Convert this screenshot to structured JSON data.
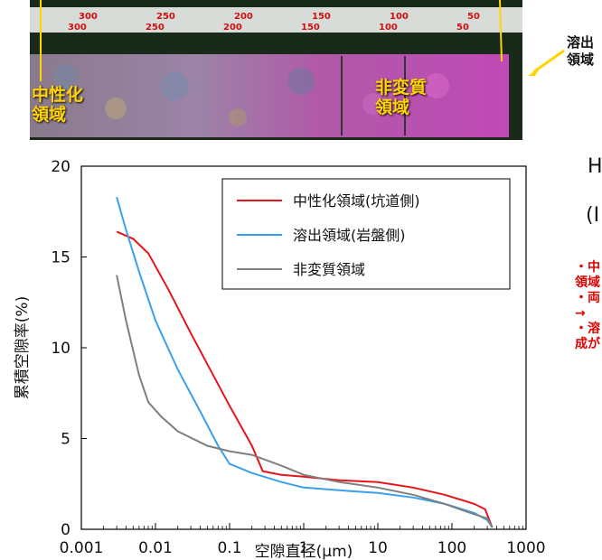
{
  "photo": {
    "ruler_ticks": [
      "300",
      "250",
      "200",
      "150",
      "100",
      "50",
      "300",
      "250",
      "200",
      "150",
      "100",
      "50"
    ],
    "label_neutralized": "中性化\n領域",
    "label_unaltered": "非変質\n領域",
    "label_leached": "溶出\n領域"
  },
  "side_panel": {
    "heading_1": "H",
    "heading_2": "(I",
    "notes": [
      "・中",
      "領域",
      "・両",
      "→",
      "・溶",
      "成が"
    ]
  },
  "colors": {
    "red": "#e8141a",
    "blue": "#3aa0ee",
    "gray": "#7f7f7f",
    "note_red": "#e00000",
    "label_yellow": "#ffd400"
  },
  "chart_data": {
    "type": "line",
    "xscale": "log",
    "xlim": [
      0.001,
      1000
    ],
    "ylim": [
      0,
      20
    ],
    "xlabel": "空隙直径(μm)",
    "ylabel": "累積空隙率(%)",
    "xticks": [
      "0.001",
      "0.01",
      "0.1",
      "1",
      "10",
      "100",
      "1000"
    ],
    "yticks": [
      "0",
      "5",
      "10",
      "15",
      "20"
    ],
    "legend_position": "top-right",
    "series": [
      {
        "name": "中性化領域(坑道側)",
        "color": "#e8141a",
        "points": [
          [
            0.003,
            16.4
          ],
          [
            0.005,
            16.0
          ],
          [
            0.008,
            15.2
          ],
          [
            0.015,
            13.2
          ],
          [
            0.03,
            10.8
          ],
          [
            0.06,
            8.5
          ],
          [
            0.1,
            6.8
          ],
          [
            0.2,
            4.6
          ],
          [
            0.28,
            3.2
          ],
          [
            0.5,
            3.0
          ],
          [
            1,
            2.9
          ],
          [
            3,
            2.7
          ],
          [
            10,
            2.6
          ],
          [
            30,
            2.3
          ],
          [
            80,
            1.9
          ],
          [
            200,
            1.4
          ],
          [
            280,
            1.1
          ],
          [
            350,
            0.1
          ]
        ]
      },
      {
        "name": "溶出領域(岩盤側)",
        "color": "#3aa0ee",
        "points": [
          [
            0.003,
            18.3
          ],
          [
            0.004,
            16.5
          ],
          [
            0.006,
            14.2
          ],
          [
            0.01,
            11.5
          ],
          [
            0.02,
            8.8
          ],
          [
            0.04,
            6.5
          ],
          [
            0.07,
            4.6
          ],
          [
            0.1,
            3.6
          ],
          [
            0.2,
            3.1
          ],
          [
            0.5,
            2.6
          ],
          [
            1,
            2.3
          ],
          [
            3,
            2.15
          ],
          [
            10,
            2.0
          ],
          [
            30,
            1.75
          ],
          [
            80,
            1.4
          ],
          [
            200,
            0.9
          ],
          [
            300,
            0.5
          ],
          [
            350,
            0.1
          ]
        ]
      },
      {
        "name": "非変質領域",
        "color": "#7f7f7f",
        "points": [
          [
            0.003,
            14.0
          ],
          [
            0.004,
            11.5
          ],
          [
            0.006,
            8.5
          ],
          [
            0.008,
            7.0
          ],
          [
            0.012,
            6.2
          ],
          [
            0.02,
            5.4
          ],
          [
            0.05,
            4.6
          ],
          [
            0.1,
            4.3
          ],
          [
            0.2,
            4.1
          ],
          [
            0.5,
            3.5
          ],
          [
            1,
            3.0
          ],
          [
            3,
            2.6
          ],
          [
            10,
            2.3
          ],
          [
            30,
            1.9
          ],
          [
            80,
            1.4
          ],
          [
            150,
            1.0
          ],
          [
            300,
            0.6
          ],
          [
            350,
            0.1
          ]
        ]
      }
    ]
  }
}
